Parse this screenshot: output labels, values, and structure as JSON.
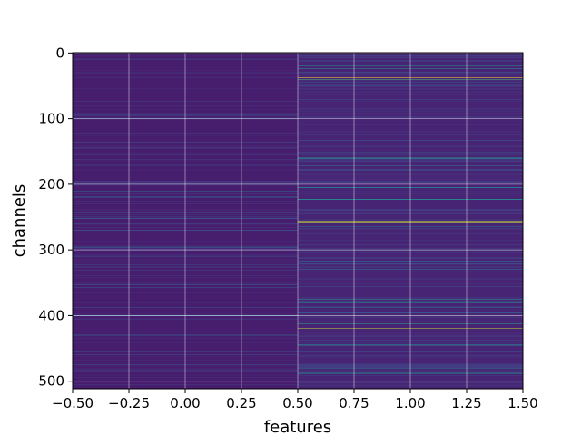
{
  "chart_data": {
    "type": "heatmap",
    "title": "",
    "xlabel": "features",
    "ylabel": "channels",
    "x_columns": [
      0,
      1
    ],
    "n_rows": 512,
    "xlim": [
      -0.5,
      1.5
    ],
    "ylim": [
      511.5,
      -0.5
    ],
    "y_inverted": true,
    "grid": true,
    "colormap": "viridis",
    "xticks": [
      "−0.50",
      "−0.25",
      "0.00",
      "0.25",
      "0.50",
      "0.75",
      "1.00",
      "1.25",
      "1.50"
    ],
    "xtick_values": [
      -0.5,
      -0.25,
      0.0,
      0.25,
      0.5,
      0.75,
      1.0,
      1.25,
      1.5
    ],
    "yticks": [
      "0",
      "100",
      "200",
      "300",
      "400",
      "500"
    ],
    "ytick_values": [
      0,
      100,
      200,
      300,
      400,
      500
    ],
    "columns": [
      {
        "feature": 0,
        "base_level": 0.08,
        "highlighted_rows": [
          {
            "row": 74,
            "value": 0.2
          },
          {
            "row": 100,
            "value": 0.25
          },
          {
            "row": 155,
            "value": 0.2
          },
          {
            "row": 210,
            "value": 0.35
          },
          {
            "row": 220,
            "value": 0.3
          },
          {
            "row": 296,
            "value": 0.4
          },
          {
            "row": 310,
            "value": 0.25
          },
          {
            "row": 357,
            "value": 0.3
          },
          {
            "row": 400,
            "value": 0.3
          },
          {
            "row": 430,
            "value": 0.25
          },
          {
            "row": 475,
            "value": 0.3
          },
          {
            "row": 500,
            "value": 0.35
          }
        ]
      },
      {
        "feature": 1,
        "base_level": 0.1,
        "highlighted_rows": [
          {
            "row": 20,
            "value": 0.5
          },
          {
            "row": 24,
            "value": 0.5
          },
          {
            "row": 38,
            "value": 1.0
          },
          {
            "row": 40,
            "value": 0.7
          },
          {
            "row": 160,
            "value": 0.5
          },
          {
            "row": 172,
            "value": 0.4
          },
          {
            "row": 205,
            "value": 0.4
          },
          {
            "row": 223,
            "value": 0.45
          },
          {
            "row": 257,
            "value": 0.95
          },
          {
            "row": 265,
            "value": 0.4
          },
          {
            "row": 300,
            "value": 0.35
          },
          {
            "row": 330,
            "value": 0.4
          },
          {
            "row": 375,
            "value": 0.55
          },
          {
            "row": 380,
            "value": 0.5
          },
          {
            "row": 388,
            "value": 0.4
          },
          {
            "row": 413,
            "value": 0.6
          },
          {
            "row": 420,
            "value": 0.9
          },
          {
            "row": 445,
            "value": 0.4
          },
          {
            "row": 480,
            "value": 0.4
          },
          {
            "row": 488,
            "value": 0.45
          },
          {
            "row": 500,
            "value": 0.45
          }
        ]
      }
    ]
  }
}
